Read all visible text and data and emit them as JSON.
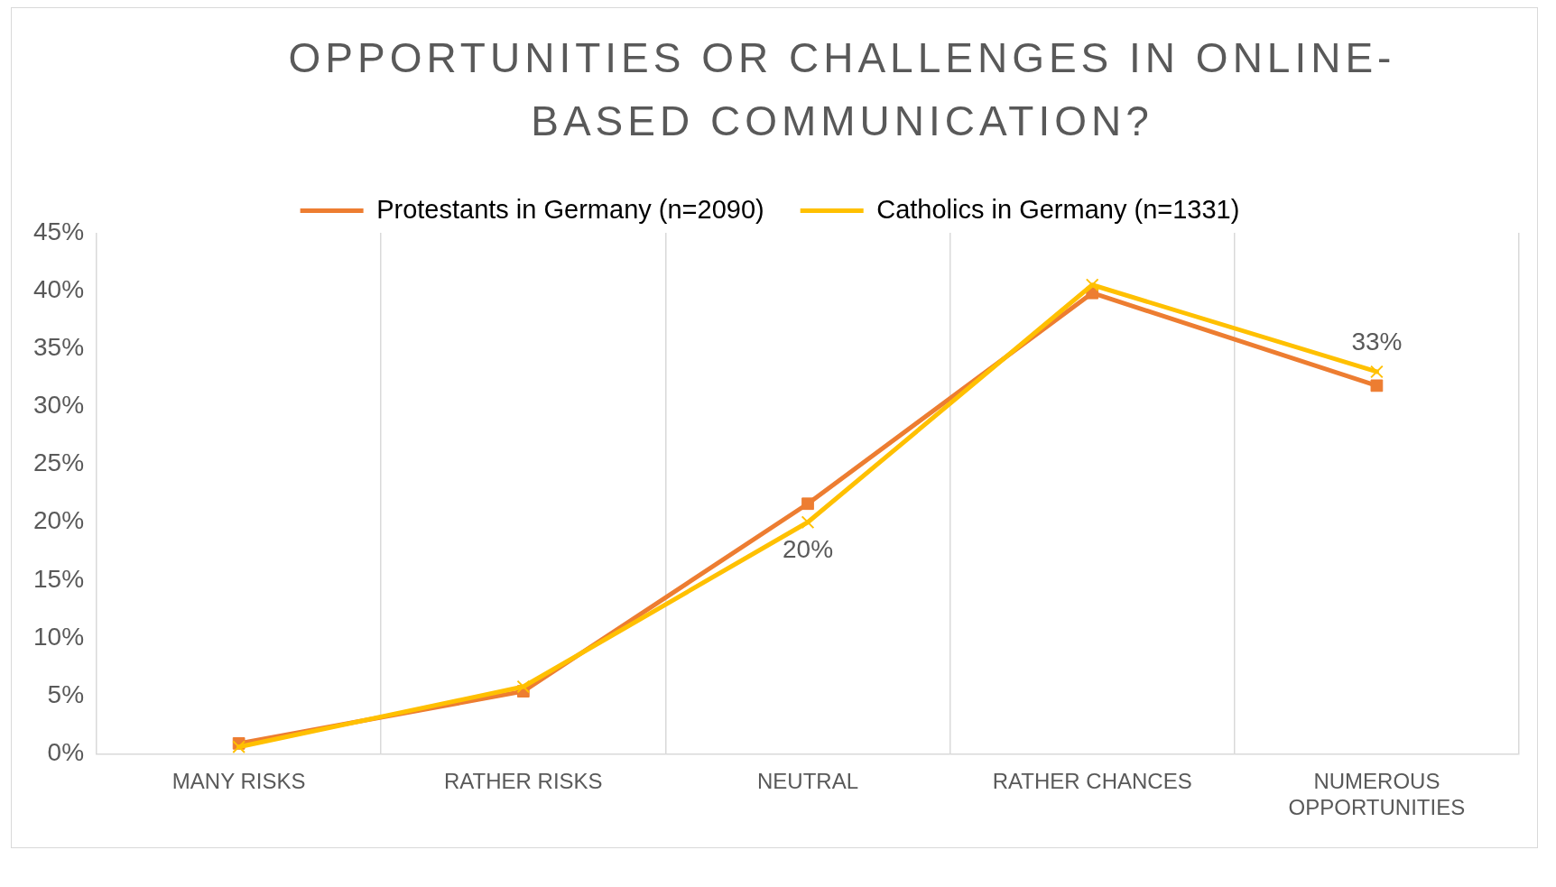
{
  "chart_data": {
    "type": "line",
    "title": "OPPORTUNITIES OR CHALLENGES IN ONLINE-BASED COMMUNICATION?",
    "categories": [
      "MANY RISKS",
      "RATHER RISKS",
      "NEUTRAL",
      "RATHER CHANCES",
      "NUMEROUS OPPORTUNITIES"
    ],
    "series": [
      {
        "name": "Protestants in Germany (n=2090)",
        "color": "#ed7d31",
        "marker": "square",
        "values": [
          0.9,
          5.4,
          21.6,
          39.8,
          31.8
        ]
      },
      {
        "name": "Catholics in Germany (n=1331)",
        "color": "#ffc000",
        "marker": "cross",
        "values": [
          0.6,
          5.8,
          20,
          40.5,
          33
        ],
        "value_labels": [
          null,
          null,
          "20%",
          null,
          "33%"
        ]
      }
    ],
    "ylim": [
      0,
      45
    ],
    "yticks": [
      {
        "value": 0,
        "label": "0%"
      },
      {
        "value": 5,
        "label": "5%"
      },
      {
        "value": 10,
        "label": "10%"
      },
      {
        "value": 15,
        "label": "15%"
      },
      {
        "value": 20,
        "label": "20%"
      },
      {
        "value": 25,
        "label": "25%"
      },
      {
        "value": 30,
        "label": "30%"
      },
      {
        "value": 35,
        "label": "35%"
      },
      {
        "value": 40,
        "label": "40%"
      },
      {
        "value": 45,
        "label": "45%"
      }
    ],
    "grid": "x",
    "legend": "top",
    "line_style": "solid"
  }
}
